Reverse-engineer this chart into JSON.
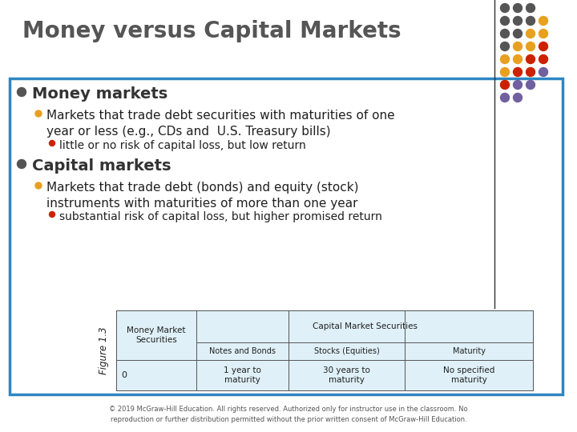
{
  "title": "Money versus Capital Markets",
  "title_color": "#555555",
  "bg_color": "#ffffff",
  "box_border_color": "#2E86C1",
  "box_bg_color": "#ffffff",
  "bullet1_label": "Money markets",
  "bullet1_dot": "#555555",
  "sub_bullet1_text": "Markets that trade debt securities with maturities of one\nyear or less (e.g., CDs and  U.S. Treasury bills)",
  "sub_bullet1_dot": "#E8A020",
  "sub_sub_bullet1_text": "little or no risk of capital loss, but low return",
  "sub_sub_bullet1_dot": "#CC2200",
  "bullet2_label": "Capital markets",
  "bullet2_dot": "#555555",
  "sub_bullet2_text": "Markets that trade debt (bonds) and equity (stock)\ninstruments with maturities of more than one year",
  "sub_bullet2_dot": "#E8A020",
  "sub_sub_bullet2_text": "substantial risk of capital loss, but higher promised return",
  "sub_sub_bullet2_dot": "#CC2200",
  "footer": "© 2019 McGraw-Hill Education. All rights reserved. Authorized only for instructor use in the classroom. No\nreproduction or further distribution permitted without the prior written consent of McGraw-Hill Education.",
  "dot_grid": [
    [
      "#555555",
      "#555555",
      "#555555"
    ],
    [
      "#555555",
      "#555555",
      "#555555",
      "#E8A020"
    ],
    [
      "#555555",
      "#555555",
      "#E8A020",
      "#E8A020"
    ],
    [
      "#555555",
      "#E8A020",
      "#E8A020",
      "#CC2200"
    ],
    [
      "#E8A020",
      "#E8A020",
      "#CC2200",
      "#CC2200"
    ],
    [
      "#E8A020",
      "#CC2200",
      "#CC2200",
      "#7060A0"
    ],
    [
      "#CC2200",
      "#7060A0",
      "#7060A0"
    ],
    [
      "#7060A0",
      "#7060A0"
    ]
  ],
  "figure_label": "Figure 1.3",
  "table_header1": "Money Market\nSecurities",
  "table_header2": "Capital Market Securities",
  "table_sub_header2a": "Notes and Bonds",
  "table_sub_header2b": "Stocks (Equities)",
  "table_sub_header2c": "Maturity",
  "table_row_label": "0",
  "table_cell1": "1 year to\nmaturity",
  "table_cell2": "30 years to\nmaturity",
  "table_cell3": "No specified\nmaturity"
}
